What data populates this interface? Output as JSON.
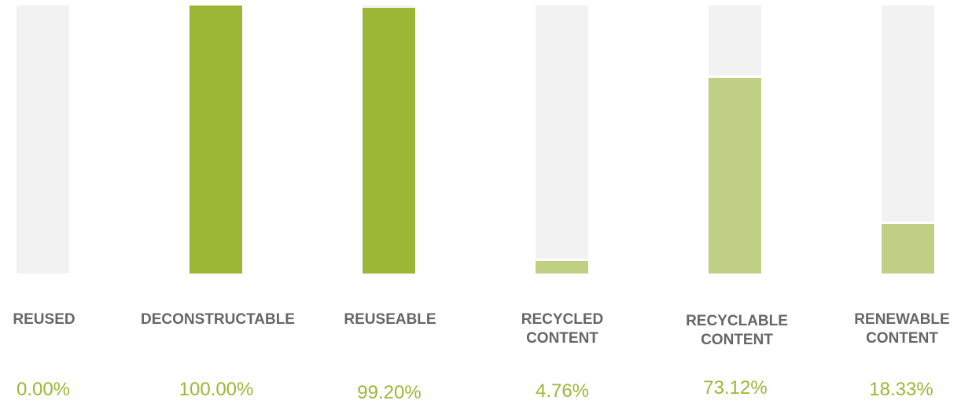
{
  "chart_data": {
    "type": "bar",
    "categories": [
      [
        "REUSED"
      ],
      [
        "DECONSTRUCTABLE"
      ],
      [
        "REUSEABLE"
      ],
      [
        "RECYCLED",
        "CONTENT"
      ],
      [
        "RECYCLABLE",
        "CONTENT"
      ],
      [
        "RENEWABLE",
        "CONTENT"
      ]
    ],
    "values": [
      0.0,
      100.0,
      99.2,
      4.76,
      73.12,
      18.33
    ],
    "value_labels": [
      "0.00%",
      "100.00%",
      "99.20%",
      "4.76%",
      "73.12%",
      "18.33%"
    ],
    "ylim": [
      0,
      100
    ],
    "colors": {
      "track": "#f2f2f2",
      "full_bar": "#9cb735",
      "partial_bar": "#bfd085",
      "label": "#666666",
      "value": "#9cb735"
    }
  }
}
